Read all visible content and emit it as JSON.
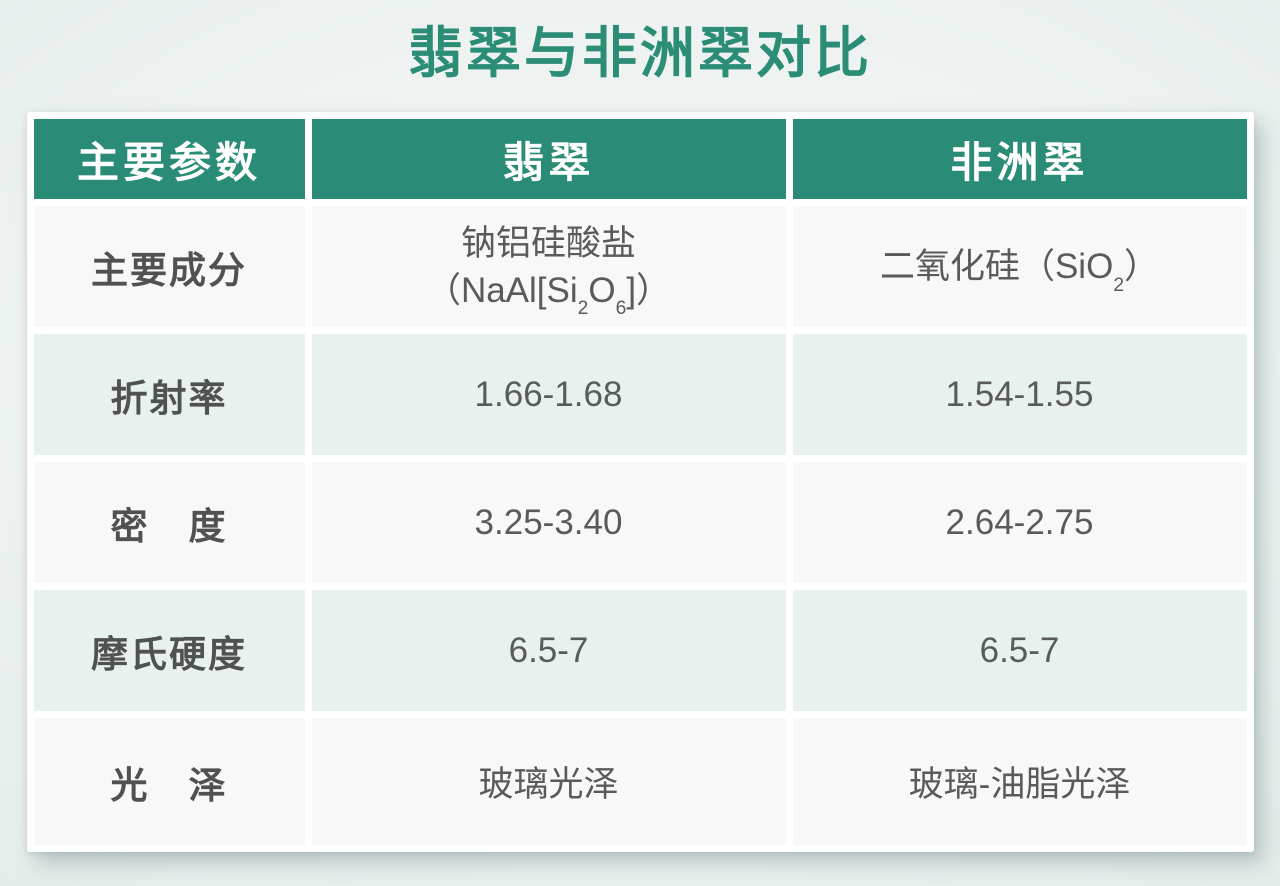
{
  "title": "翡翠与非洲翠对比",
  "colors": {
    "accent_teal": "#2a8c76",
    "title_green": "#2b8d75",
    "row_tint_green": "#e9f1ee",
    "row_plain": "#f7f8f7",
    "text_gray": "#595a5c",
    "page_background": "#edf2f1"
  },
  "table": {
    "headers": [
      "主要参数",
      "翡翠",
      "非洲翠"
    ],
    "rows": [
      {
        "param": "主要成分",
        "jadeite": {
          "line1": "钠铝硅酸盐",
          "formula_prefix": "（NaAl[Si",
          "formula_sub1": "2",
          "formula_mid": "O",
          "formula_sub2": "6",
          "formula_suffix": "]）"
        },
        "african": {
          "prefix": "二氧化硅（SiO",
          "sub": "2",
          "suffix": "）"
        }
      },
      {
        "param": "折射率",
        "jadeite": "1.66-1.68",
        "african": "1.54-1.55"
      },
      {
        "param": "密　度",
        "jadeite": "3.25-3.40",
        "african": "2.64-2.75"
      },
      {
        "param": "摩氏硬度",
        "jadeite": "6.5-7",
        "african": "6.5-7"
      },
      {
        "param": "光　泽",
        "jadeite": "玻璃光泽",
        "african": "玻璃-油脂光泽"
      }
    ]
  },
  "chart_data": {
    "type": "table",
    "title": "翡翠与非洲翠对比",
    "columns": [
      "主要参数",
      "翡翠",
      "非洲翠"
    ],
    "rows": [
      [
        "主要成分",
        "钠铝硅酸盐（NaAl[Si₂O₆]）",
        "二氧化硅（SiO₂）"
      ],
      [
        "折射率",
        "1.66-1.68",
        "1.54-1.55"
      ],
      [
        "密度",
        "3.25-3.40",
        "2.64-2.75"
      ],
      [
        "摩氏硬度",
        "6.5-7",
        "6.5-7"
      ],
      [
        "光泽",
        "玻璃光泽",
        "玻璃-油脂光泽"
      ]
    ]
  }
}
